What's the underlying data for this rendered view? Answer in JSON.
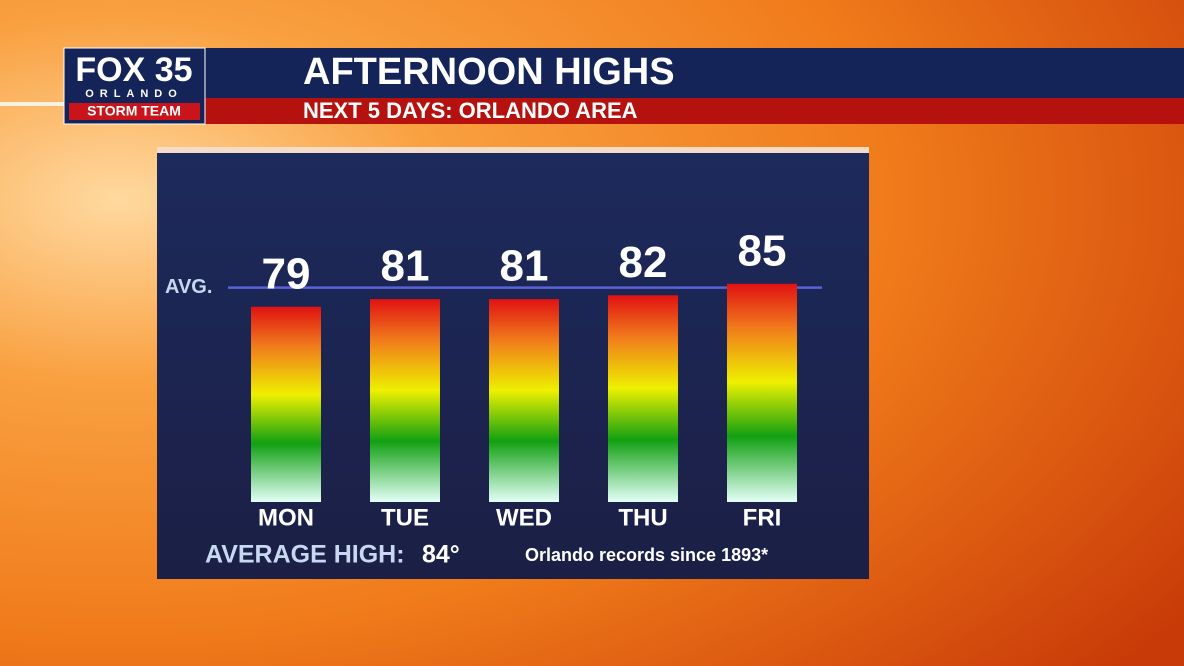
{
  "brand": {
    "name": "FOX 35",
    "city": "ORLANDO",
    "team": "STORM TEAM"
  },
  "chart_data": {
    "type": "bar",
    "title": "AFTERNOON HIGHS",
    "subtitle": "NEXT 5 DAYS: ORLANDO AREA",
    "categories": [
      "MON",
      "TUE",
      "WED",
      "THU",
      "FRI"
    ],
    "values": [
      79,
      81,
      81,
      82,
      85
    ],
    "ylim": [
      28,
      92
    ],
    "average": 84,
    "average_line_label": "AVG.",
    "average_label": "AVERAGE HIGH:",
    "average_value_label": "84°",
    "note": "Orlando records since 1893*"
  }
}
